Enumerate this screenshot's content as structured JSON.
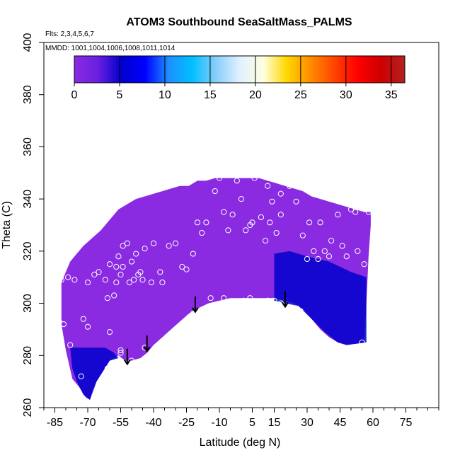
{
  "chart_data": {
    "type": "heatmap",
    "title": "ATOM3 Southbound SeaSaltMass_PALMS",
    "flights_text": "Flts: 2,3,4,5,6,7",
    "dates_text": "MMDD: 1001,1004,1006,1008,1011,1014",
    "xlabel": "Latitude (deg N)",
    "ylabel": "Theta (C)",
    "xlim": [
      -90,
      90
    ],
    "ylim": [
      260,
      400
    ],
    "x_ticks": [
      -85,
      -70,
      -55,
      -40,
      -25,
      -10,
      5,
      15,
      30,
      45,
      60,
      75
    ],
    "x_tick_labels": [
      "-85",
      "-70",
      "-55",
      "-40",
      "-25",
      "-10",
      "5",
      "15",
      "30",
      "45",
      "60",
      "75"
    ],
    "y_ticks": [
      260,
      280,
      300,
      320,
      340,
      360,
      380,
      400
    ],
    "y_tick_labels": [
      "260",
      "280",
      "300",
      "320",
      "340",
      "360",
      "380",
      "400"
    ],
    "colorbar": {
      "ticks": [
        0,
        5,
        10,
        15,
        20,
        25,
        30,
        35
      ],
      "tick_labels": [
        "0",
        "5",
        "10",
        "15",
        "20",
        "25",
        "30",
        "35"
      ],
      "range": [
        0,
        36.5
      ],
      "colors": [
        "#8a2be2",
        "#6a1fe0",
        "#0000cd",
        "#0000ff",
        "#1e90ff",
        "#00bfff",
        "#87cefa",
        "#e0f0ff",
        "#ffffe0",
        "#ffd700",
        "#ff8c00",
        "#ff4500",
        "#ff0000",
        "#cd0000",
        "#b22222"
      ]
    },
    "field_color_low": "#8a2be2",
    "field_color_high": "#0000cd",
    "domain_top": [
      [
        -82,
        308
      ],
      [
        -80,
        312
      ],
      [
        -78,
        316
      ],
      [
        -75,
        319
      ],
      [
        -72,
        322
      ],
      [
        -68,
        325
      ],
      [
        -64,
        328
      ],
      [
        -60,
        332
      ],
      [
        -56,
        336
      ],
      [
        -52,
        338
      ],
      [
        -48,
        340
      ],
      [
        -44,
        341
      ],
      [
        -40,
        342
      ],
      [
        -36,
        343
      ],
      [
        -32,
        344
      ],
      [
        -28,
        345
      ],
      [
        -24,
        345
      ],
      [
        -20,
        347
      ],
      [
        -16,
        347
      ],
      [
        -12,
        348
      ],
      [
        -8,
        348
      ],
      [
        -4,
        348
      ],
      [
        0,
        348
      ],
      [
        4,
        348
      ],
      [
        8,
        348
      ],
      [
        12,
        347
      ],
      [
        16,
        346
      ],
      [
        20,
        345
      ],
      [
        24,
        344
      ],
      [
        28,
        343
      ],
      [
        32,
        341
      ],
      [
        36,
        340
      ],
      [
        40,
        339
      ],
      [
        44,
        338
      ],
      [
        48,
        337
      ],
      [
        52,
        336
      ],
      [
        56,
        335
      ],
      [
        59,
        335
      ],
      [
        59,
        330
      ],
      [
        58,
        318
      ]
    ],
    "domain_bottom": [
      [
        58,
        318
      ],
      [
        57,
        300
      ],
      [
        56,
        285
      ],
      [
        48,
        284
      ],
      [
        44,
        285
      ],
      [
        40,
        287
      ],
      [
        36,
        290
      ],
      [
        32,
        294
      ],
      [
        28,
        298
      ],
      [
        24,
        300
      ],
      [
        20,
        301
      ],
      [
        15,
        302
      ],
      [
        10,
        302
      ],
      [
        5,
        302
      ],
      [
        0,
        302
      ],
      [
        -5,
        302
      ],
      [
        -10,
        301
      ],
      [
        -15,
        300
      ],
      [
        -20,
        298
      ],
      [
        -24,
        296
      ],
      [
        -28,
        293
      ],
      [
        -32,
        290
      ],
      [
        -36,
        287
      ],
      [
        -40,
        284
      ],
      [
        -43,
        281
      ],
      [
        -46,
        279
      ],
      [
        -50,
        278
      ],
      [
        -53,
        278
      ],
      [
        -56,
        280
      ],
      [
        -60,
        278
      ],
      [
        -63,
        274
      ],
      [
        -66,
        270
      ],
      [
        -68,
        266
      ],
      [
        -69,
        263
      ],
      [
        -71,
        264
      ],
      [
        -74,
        268
      ],
      [
        -77,
        271
      ],
      [
        -80,
        282
      ],
      [
        -82,
        292
      ]
    ],
    "blue_regions": [
      [
        [
          15,
          319
        ],
        [
          22,
          320
        ],
        [
          30,
          318
        ],
        [
          40,
          316
        ],
        [
          50,
          312
        ],
        [
          57,
          310
        ],
        [
          57,
          285
        ],
        [
          48,
          284
        ],
        [
          44,
          285
        ],
        [
          38,
          289
        ],
        [
          32,
          294
        ],
        [
          26,
          299
        ],
        [
          20,
          300
        ],
        [
          15,
          301
        ]
      ],
      [
        [
          -78,
          283
        ],
        [
          -70,
          283
        ],
        [
          -62,
          283
        ],
        [
          -58,
          281
        ],
        [
          -56,
          279
        ],
        [
          -60,
          278
        ],
        [
          -63,
          274
        ],
        [
          -66,
          270
        ],
        [
          -69,
          263
        ],
        [
          -72,
          265
        ],
        [
          -75,
          270
        ],
        [
          -77,
          275
        ]
      ]
    ],
    "points": [
      [
        -82,
        309
      ],
      [
        -83,
        293
      ],
      [
        -81,
        292
      ],
      [
        -78,
        284
      ],
      [
        -79,
        310
      ],
      [
        -76,
        309
      ],
      [
        -72,
        294
      ],
      [
        -70,
        291
      ],
      [
        -70,
        308
      ],
      [
        -67,
        311
      ],
      [
        -65,
        312
      ],
      [
        -62,
        309
      ],
      [
        -61,
        302
      ],
      [
        -60,
        289
      ],
      [
        -60,
        315
      ],
      [
        -58,
        303
      ],
      [
        -57,
        308
      ],
      [
        -57,
        314
      ],
      [
        -56,
        318
      ],
      [
        -55,
        311
      ],
      [
        -54,
        314
      ],
      [
        -54,
        322
      ],
      [
        -52,
        323
      ],
      [
        -51,
        308
      ],
      [
        -50,
        316
      ],
      [
        -49,
        309
      ],
      [
        -48,
        319
      ],
      [
        -47,
        311
      ],
      [
        -46,
        312
      ],
      [
        -45,
        309
      ],
      [
        -44,
        321
      ],
      [
        -41,
        308
      ],
      [
        -40,
        323
      ],
      [
        -37,
        312
      ],
      [
        -36,
        308
      ],
      [
        -33,
        322
      ],
      [
        -30,
        323
      ],
      [
        -27,
        314
      ],
      [
        -25,
        313
      ],
      [
        -22,
        319
      ],
      [
        -20,
        331
      ],
      [
        -18,
        327
      ],
      [
        -16,
        331
      ],
      [
        -12,
        343
      ],
      [
        -10,
        348
      ],
      [
        -8,
        335
      ],
      [
        -6,
        328
      ],
      [
        -4,
        334
      ],
      [
        -2,
        347
      ],
      [
        0,
        340
      ],
      [
        2,
        328
      ],
      [
        4,
        330
      ],
      [
        5,
        331
      ],
      [
        6,
        348
      ],
      [
        9,
        333
      ],
      [
        11,
        324
      ],
      [
        12,
        345
      ],
      [
        13,
        331
      ],
      [
        14,
        339
      ],
      [
        16,
        327
      ],
      [
        18,
        334
      ],
      [
        18,
        342
      ],
      [
        22,
        345
      ],
      [
        25,
        339
      ],
      [
        28,
        326
      ],
      [
        30,
        317
      ],
      [
        31,
        331
      ],
      [
        33,
        320
      ],
      [
        35,
        317
      ],
      [
        36,
        331
      ],
      [
        38,
        320
      ],
      [
        40,
        318
      ],
      [
        41,
        324
      ],
      [
        44,
        334
      ],
      [
        46,
        322
      ],
      [
        48,
        318
      ],
      [
        50,
        336
      ],
      [
        52,
        335
      ],
      [
        53,
        320
      ],
      [
        56,
        315
      ],
      [
        58,
        335
      ],
      [
        -55,
        282
      ],
      [
        -55,
        281
      ],
      [
        -50,
        278
      ],
      [
        -44,
        283
      ],
      [
        -22,
        296
      ],
      [
        -14,
        302
      ],
      [
        -8,
        302
      ],
      [
        1,
        301
      ],
      [
        4,
        302
      ],
      [
        12,
        301
      ],
      [
        15,
        301
      ],
      [
        18,
        300
      ],
      [
        27,
        297
      ],
      [
        31,
        291
      ],
      [
        32,
        291
      ],
      [
        36,
        286
      ],
      [
        40,
        285
      ],
      [
        45,
        283
      ],
      [
        55,
        285
      ],
      [
        -61,
        275
      ],
      [
        -56,
        277
      ],
      [
        -73,
        272
      ]
    ],
    "arrows": [
      [
        -52,
        281
      ],
      [
        -43,
        286
      ],
      [
        -21,
        301
      ],
      [
        20,
        303
      ]
    ]
  }
}
